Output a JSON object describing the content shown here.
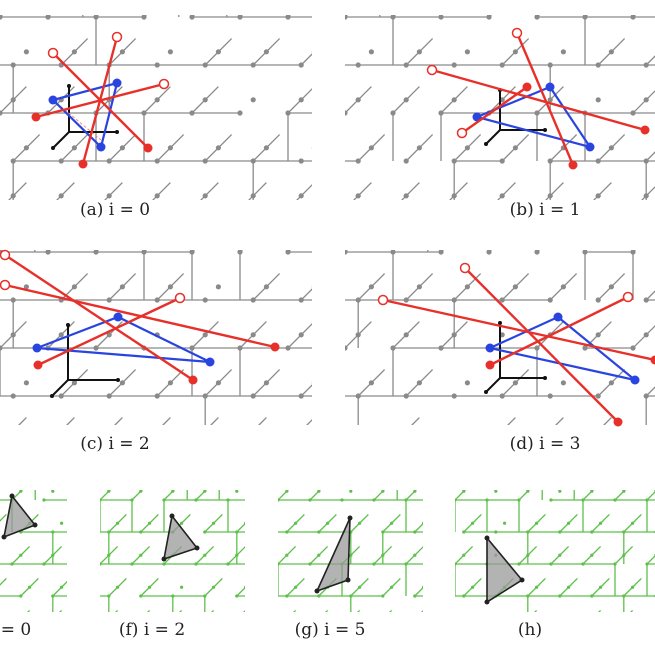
{
  "captions": {
    "a": "(a) i = 0",
    "b": "(b) i = 1",
    "c": "(c) i = 2",
    "d": "(d) i = 3",
    "e": "= 0",
    "f": "(f) i = 2",
    "g": "(g) i = 5",
    "h": "(h)"
  },
  "colors": {
    "lattice_gray": "#8a8a8a",
    "lattice_green": "#5cc04a",
    "red": "#e8302a",
    "blue": "#2a44e0",
    "axes": "#111111",
    "simplex_fill": "#9a9a9a"
  }
}
